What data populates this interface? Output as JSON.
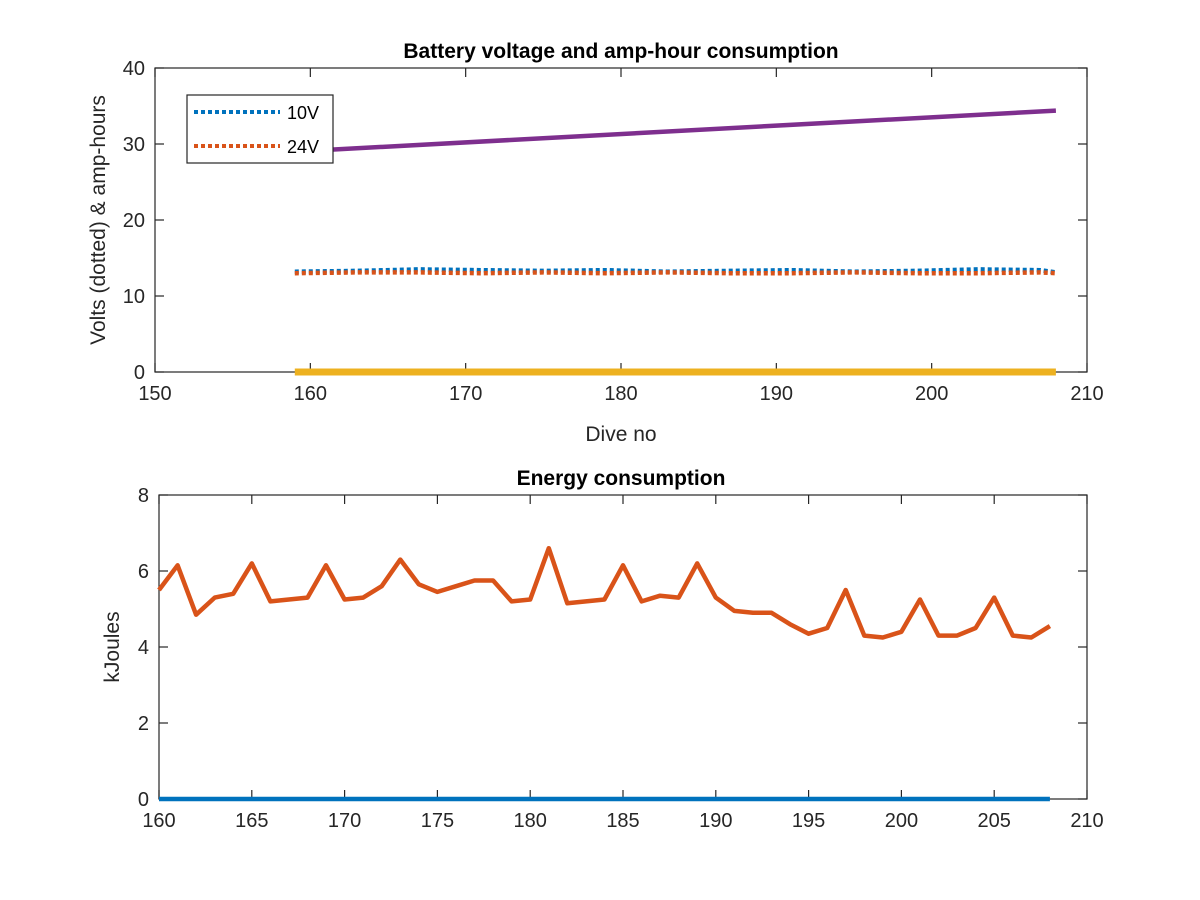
{
  "chart_data": [
    {
      "type": "line",
      "title": "Battery voltage and amp-hour consumption",
      "xlabel": "Dive no",
      "ylabel": "Volts (dotted) & amp-hours",
      "xlim": [
        150,
        210
      ],
      "ylim": [
        0,
        40
      ],
      "xticks": [
        "150",
        "160",
        "170",
        "180",
        "190",
        "200",
        "210"
      ],
      "yticks": [
        "0",
        "10",
        "20",
        "30",
        "40"
      ],
      "grid": false,
      "legend_position": "top-left",
      "series": [
        {
          "name": "10V",
          "style": "dotted",
          "color": "#0072BD",
          "x": [
            159,
            163,
            167,
            171,
            175,
            179,
            183,
            187,
            191,
            195,
            199,
            203,
            207,
            208
          ],
          "y": [
            13.2,
            13.3,
            13.5,
            13.4,
            13.3,
            13.4,
            13.2,
            13.3,
            13.4,
            13.2,
            13.3,
            13.5,
            13.4,
            13.1
          ]
        },
        {
          "name": "24V",
          "style": "dotted",
          "color": "#D95319",
          "x": [
            159,
            163,
            167,
            171,
            175,
            179,
            183,
            187,
            191,
            195,
            199,
            203,
            207,
            208
          ],
          "y": [
            13.0,
            13.1,
            13.1,
            13.0,
            13.1,
            13.0,
            13.1,
            13.0,
            13.0,
            13.1,
            13.0,
            13.0,
            13.1,
            13.0
          ]
        },
        {
          "style": "solid",
          "color": "#EDB120",
          "x": [
            159,
            208
          ],
          "y": [
            0,
            0
          ]
        },
        {
          "style": "solid",
          "color": "#7E2F8E",
          "x": [
            159,
            208
          ],
          "y": [
            29.0,
            34.4
          ]
        }
      ]
    },
    {
      "type": "line",
      "title": "Energy consumption",
      "xlabel": "",
      "ylabel": "kJoules",
      "xlim": [
        160,
        210
      ],
      "ylim": [
        0,
        8
      ],
      "xticks": [
        "160",
        "165",
        "170",
        "175",
        "180",
        "185",
        "190",
        "195",
        "200",
        "205",
        "210"
      ],
      "yticks": [
        "0",
        "2",
        "4",
        "6",
        "8"
      ],
      "grid": false,
      "series": [
        {
          "style": "solid",
          "color": "#D95319",
          "x": [
            160,
            161,
            162,
            163,
            164,
            165,
            166,
            167,
            168,
            169,
            170,
            171,
            172,
            173,
            174,
            175,
            176,
            177,
            178,
            179,
            180,
            181,
            182,
            183,
            184,
            185,
            186,
            187,
            188,
            189,
            190,
            191,
            192,
            193,
            194,
            195,
            196,
            197,
            198,
            199,
            200,
            201,
            202,
            203,
            204,
            205,
            206,
            207,
            208
          ],
          "y": [
            5.5,
            6.15,
            4.85,
            5.3,
            5.4,
            6.2,
            5.2,
            5.25,
            5.3,
            6.15,
            5.25,
            5.3,
            5.6,
            6.3,
            5.65,
            5.45,
            5.6,
            5.75,
            5.75,
            5.2,
            5.25,
            6.6,
            5.15,
            5.2,
            5.25,
            6.15,
            5.2,
            5.35,
            5.3,
            6.2,
            5.3,
            4.95,
            4.9,
            4.9,
            4.6,
            4.35,
            4.5,
            5.5,
            4.3,
            4.25,
            4.4,
            5.25,
            4.3,
            4.3,
            4.5,
            5.3,
            4.3,
            4.25,
            4.55
          ]
        },
        {
          "style": "solid",
          "color": "#0072BD",
          "x": [
            160,
            208
          ],
          "y": [
            0,
            0
          ]
        }
      ]
    }
  ]
}
